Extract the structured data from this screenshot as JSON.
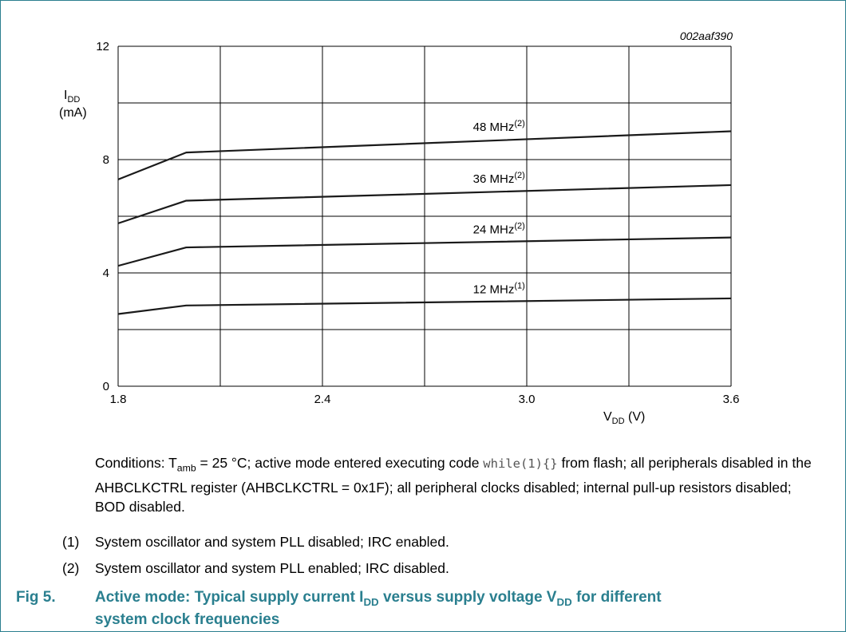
{
  "figure_code": "002aaf390",
  "chart_data": {
    "type": "line",
    "xlabel": "VDD (V)",
    "xlabel_main": "V",
    "xlabel_sub": "DD",
    "xlabel_unit": " (V)",
    "ylabel_main": "I",
    "ylabel_sub": "DD",
    "ylabel_unit": "(mA)",
    "xlim": [
      1.8,
      3.6
    ],
    "ylim": [
      0,
      12
    ],
    "x_ticks": [
      "1.8",
      "2.4",
      "3.0",
      "3.6"
    ],
    "y_ticks": [
      "0",
      "4",
      "8",
      "12"
    ],
    "grid": true,
    "x": [
      1.8,
      2.0,
      3.6
    ],
    "series": [
      {
        "name": "48 MHz(2)",
        "label_main": "48 MHz",
        "label_sup": "(2)",
        "values": [
          7.3,
          8.25,
          9.0
        ]
      },
      {
        "name": "36 MHz(2)",
        "label_main": "36 MHz",
        "label_sup": "(2)",
        "values": [
          5.75,
          6.55,
          7.1
        ]
      },
      {
        "name": "24 MHz(2)",
        "label_main": "24 MHz",
        "label_sup": "(2)",
        "values": [
          4.25,
          4.9,
          5.25
        ]
      },
      {
        "name": "12 MHz(1)",
        "label_main": "12 MHz",
        "label_sup": "(1)",
        "values": [
          2.55,
          2.85,
          3.1
        ]
      }
    ]
  },
  "conditions": {
    "prefix": "Conditions: T",
    "tamb_sub": "amb",
    "part1": " = 25 °C; active mode entered executing code ",
    "code": "while(1){}",
    "part2": " from flash; all peripherals disabled in the AHBCLKCTRL register (AHBCLKCTRL = 0x1F); all peripheral clocks disabled; internal pull-up resistors disabled; BOD disabled."
  },
  "notes": [
    {
      "num": "(1)",
      "text": "System oscillator and system PLL disabled; IRC enabled."
    },
    {
      "num": "(2)",
      "text": "System oscillator and system PLL enabled; IRC disabled."
    }
  ],
  "caption": {
    "fig": "Fig 5.",
    "text_a": "Active mode: Typical supply current I",
    "sub_a": "DD",
    "text_b": " versus supply voltage V",
    "sub_b": "DD",
    "text_c": " for different",
    "line2": "system clock frequencies"
  },
  "colors": {
    "accent": "#2a7f8f",
    "line": "#1a1a1a",
    "grid": "#000000"
  }
}
